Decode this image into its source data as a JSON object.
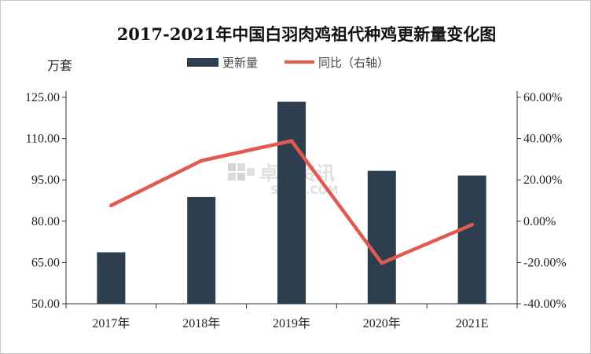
{
  "chart_data": {
    "type": "bar",
    "title": "2017-2021年中国白羽肉鸡祖代种鸡更新量变化图",
    "ylabel": "万套",
    "categories": [
      "2017年",
      "2018年",
      "2019年",
      "2020年",
      "2021E"
    ],
    "ylim": [
      50,
      125
    ],
    "yticks": [
      "50.00",
      "65.00",
      "80.00",
      "95.00",
      "110.00",
      "125.00"
    ],
    "y2lim": [
      -40,
      60
    ],
    "y2ticks": [
      "-40.00%",
      "-20.00%",
      "0.00%",
      "20.00%",
      "40.00%",
      "60.00%"
    ],
    "series": [
      {
        "name": "更新量",
        "kind": "bar",
        "axis": "left",
        "color": "#2d3e4f",
        "values": [
          68.7,
          88.8,
          123.4,
          98.3,
          96.6
        ]
      },
      {
        "name": "同比（右轴）",
        "kind": "line",
        "axis": "right",
        "color": "#e05a4f",
        "values": [
          7.6,
          29.3,
          38.9,
          -20.3,
          -1.7
        ]
      }
    ],
    "legend_position": "top",
    "grid": false
  },
  "watermark": {
    "text": "卓创资讯",
    "subtext": "SCI99.COM"
  }
}
